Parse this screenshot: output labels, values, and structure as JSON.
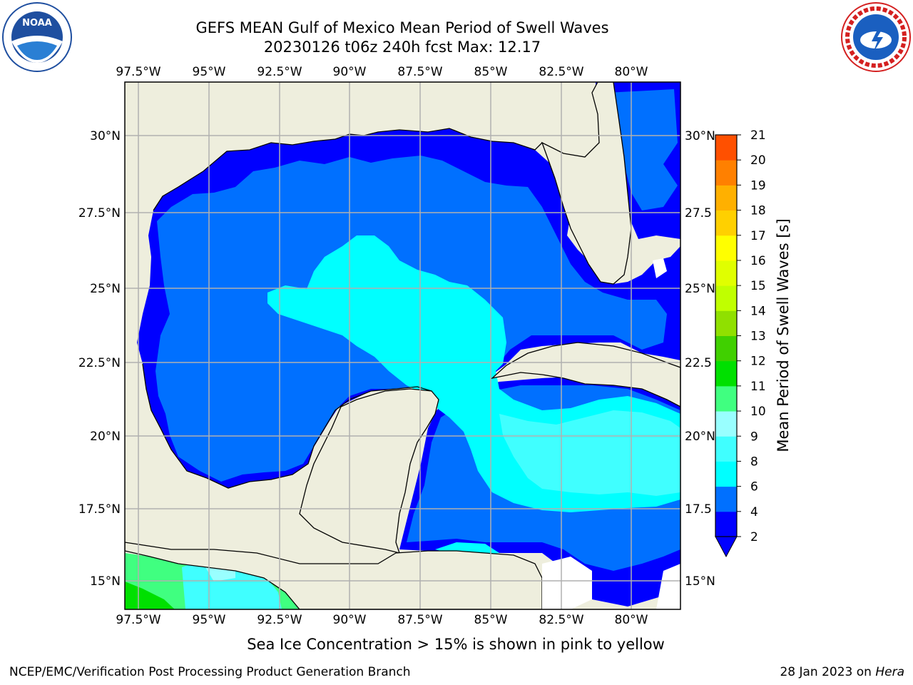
{
  "header": {
    "title_line1": "GEFS MEAN Gulf of Mexico Mean Period of Swell Waves",
    "title_line2": "20230126 t06z 240h fcst   Max: 12.17"
  },
  "logos": {
    "left": {
      "icon": "noaa-logo",
      "text": "NOAA"
    },
    "right": {
      "icon": "national-weather-service-logo",
      "text": "NATIONAL WEATHER SERVICE"
    }
  },
  "map": {
    "x_ticks": [
      "97.5°W",
      "95°W",
      "92.5°W",
      "90°W",
      "87.5°W",
      "85°W",
      "82.5°W",
      "80°W"
    ],
    "y_ticks": [
      "30°N",
      "27.5°N",
      "25°N",
      "22.5°N",
      "20°N",
      "17.5°N",
      "15°N"
    ],
    "y_ticks_right": [
      "30°N",
      "27.5",
      "25°N",
      "22.5",
      "20°N",
      "17.5",
      "15°N"
    ],
    "colors": {
      "land": "#eeeedd",
      "gridline": "#b0b0b0",
      "coastline": "#000000",
      "missing": "#ffffff"
    }
  },
  "colorbar": {
    "label": "Mean Period of Swell Waves [s]",
    "ticks": [
      "2",
      "4",
      "6",
      "8",
      "9",
      "10",
      "11",
      "12",
      "13",
      "14",
      "15",
      "16",
      "17",
      "18",
      "19",
      "20",
      "21"
    ],
    "colors": [
      "#0000ff",
      "#0070ff",
      "#00ffff",
      "#40ffff",
      "#99ffff",
      "#40ff80",
      "#00e000",
      "#40d000",
      "#90e000",
      "#c0ff00",
      "#e0ff00",
      "#ffff00",
      "#ffd000",
      "#ffb000",
      "#ff8000",
      "#ff5000",
      "#ff2000",
      "#ff0000"
    ]
  },
  "note": "Sea Ice Concentration > 15% is shown in pink to yellow",
  "footer": {
    "left": "NCEP/EMC/Verification Post Processing Product Generation Branch",
    "right_date": "28 Jan 2023 on ",
    "right_host": "Hera"
  }
}
